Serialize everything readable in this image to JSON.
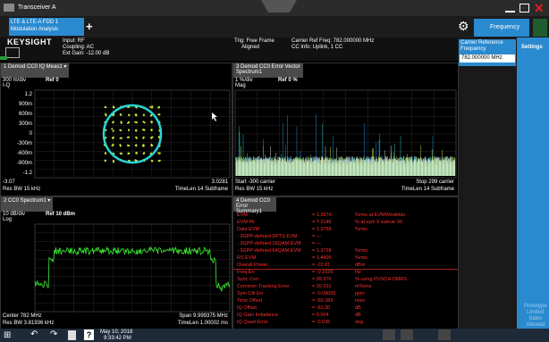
{
  "title_bar": {
    "app": "Transceiver A"
  },
  "tabs": {
    "mode": [
      "LTE & LTE-A FDD 1",
      "Modulation Analysis"
    ],
    "add": "+",
    "menu": "Frequency"
  },
  "header": {
    "logo": "KEYSIGHT",
    "input": [
      "Input: RF",
      "Coupling: AC",
      "Ext Gain: -12.00 dB"
    ],
    "trigger": [
      "Trig: Free Frame",
      "Aligned"
    ],
    "carrier": [
      "Carrier Ref Freq: 782.000000 MHz",
      "CC Info: Uplink, 1 CC"
    ]
  },
  "side_panel": {
    "label": [
      "Carrier Reference",
      "Frequency"
    ],
    "value": "782.000000 MHz",
    "tab": "Settings",
    "watermark": [
      "Prototype",
      "Limited",
      "Sales",
      "Allowed"
    ]
  },
  "windows": [
    {
      "title": "1 Demod CC0 IQ Meas1",
      "scale": "300 m/div",
      "ref": "Ref 0",
      "format": "I-Q",
      "y_labels": [
        "1.2",
        "900m",
        "600m",
        "300m",
        "0",
        "-300m",
        "-600m",
        "-900m",
        "-1.2"
      ],
      "footer": [
        "-3.07",
        "3.0281",
        "Res BW 15 kHz",
        "TimeLen 14 Subframe"
      ]
    },
    {
      "title": [
        "3 Demod CC0 Error Vector",
        "Spectrum1"
      ],
      "scale": "1 %/div",
      "ref": "Ref 0 %",
      "format": "Mag",
      "footer": [
        "Start -300 carrier",
        "Stop 299 carrier",
        "Res BW 15 kHz",
        "TimeLen 14 Subframe"
      ]
    },
    {
      "title": "2 CC0 Spectrum1",
      "scale": "10 dB/div",
      "ref": "Ref 10 dBm",
      "format": "Log",
      "footer": [
        "Center 782 MHz",
        "Span 9.999375 MHz",
        "Res BW 3.81936 kHz",
        "TimeLen 1.00002 ms"
      ]
    }
  ],
  "error_summary": {
    "title": [
      "4 Demod CC0 Error",
      "Summary1"
    ],
    "rows": [
      [
        "EVM",
        "= 1.3974",
        "%rms at EVM/ModeIdx"
      ],
      [
        "EVM Pk",
        "= 7.2146",
        "% at sym 9 subcar 30"
      ],
      [
        "Data EVM",
        "= 1.3759",
        "%rms"
      ],
      [
        "- 3GPP-defined DFTS EVM",
        "= ---",
        ""
      ],
      [
        "- 3GPP-defined 16QAM EVM",
        "= ---",
        ""
      ],
      [
        "- 3GPP-defined 64QAM EVM",
        "= 1.3728",
        "%rms"
      ],
      [
        "RS EVM",
        "= 1.4409",
        "%rms"
      ],
      [
        "Overall Power",
        "= -22.61",
        "dBm"
      ],
      [
        "Freq Err",
        "= -0.1029",
        "Hz"
      ],
      [
        "Sync Corr",
        "= 99.976",
        "% using PUSCH DMRS"
      ],
      [
        "Common Tracking Error",
        "= 20.631",
        "m%rms"
      ],
      [
        "Sym Clk Err",
        "= -0.09009",
        "ppm"
      ],
      [
        "Time Offset",
        "= -60.283",
        "nsec"
      ],
      [
        "IQ Offset",
        "= -81.30",
        "dB"
      ],
      [
        "IQ Gain Imbalance",
        "= 0.004",
        "dB"
      ],
      [
        "IQ Quad Error",
        "= -0.035",
        "deg"
      ]
    ]
  },
  "taskbar": {
    "date": "May 10, 2018",
    "time": "9:33:42 PM"
  }
}
